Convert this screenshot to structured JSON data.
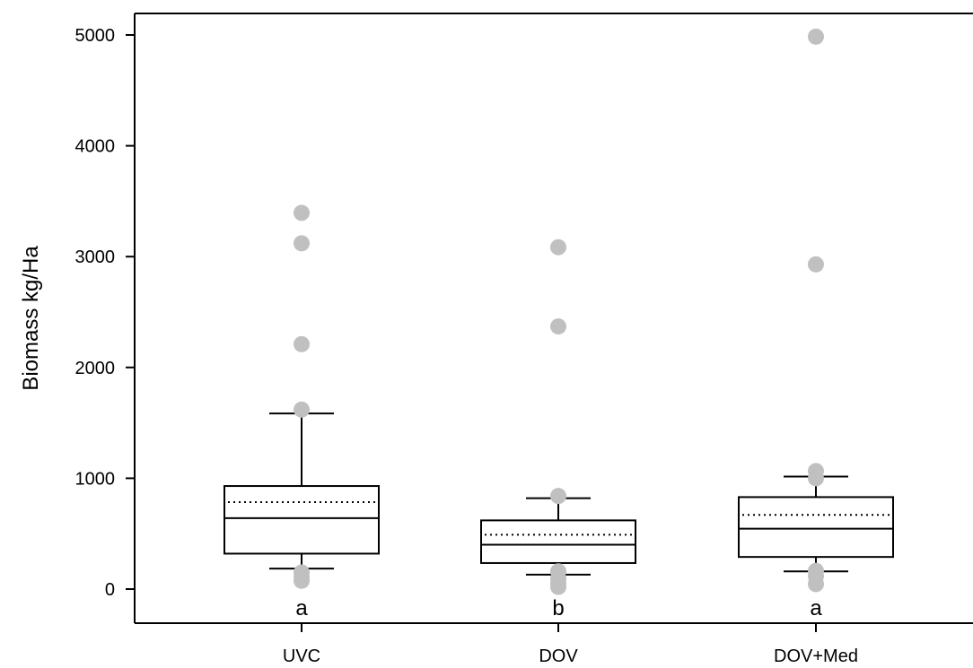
{
  "chart_data": {
    "type": "box",
    "title": "",
    "xlabel": "",
    "ylabel": "Biomass kg/Ha",
    "ylim": [
      -300,
      5200
    ],
    "yticks": [
      0,
      1000,
      2000,
      3000,
      4000,
      5000
    ],
    "ytick_labels": [
      "0",
      "1000",
      "2000",
      "3000",
      "4000",
      "5000"
    ],
    "grid": false,
    "legend": "none",
    "categories": [
      "UVC",
      "DOV",
      "DOV+Med"
    ],
    "boxes": [
      {
        "category": "UVC",
        "whisker_low": 185,
        "q1": 320,
        "median": 640,
        "q3": 930,
        "whisker_high": 1585,
        "mean": 785,
        "outliers": [
          75,
          110,
          150,
          1620,
          2210,
          3120,
          3395
        ],
        "group_letter": "a"
      },
      {
        "category": "DOV",
        "whisker_low": 130,
        "q1": 235,
        "median": 400,
        "q3": 620,
        "whisker_high": 820,
        "mean": 490,
        "outliers": [
          20,
          55,
          95,
          160,
          840,
          2370,
          3085
        ],
        "group_letter": "b"
      },
      {
        "category": "DOV+Med",
        "whisker_low": 160,
        "q1": 290,
        "median": 545,
        "q3": 830,
        "whisker_high": 1015,
        "mean": 670,
        "outliers": [
          45,
          115,
          165,
          1000,
          1065,
          2930,
          4985
        ],
        "group_letter": "a"
      }
    ],
    "colors": {
      "box_stroke": "#000000",
      "outlier": "#c0c0c0",
      "axis": "#000000"
    }
  }
}
